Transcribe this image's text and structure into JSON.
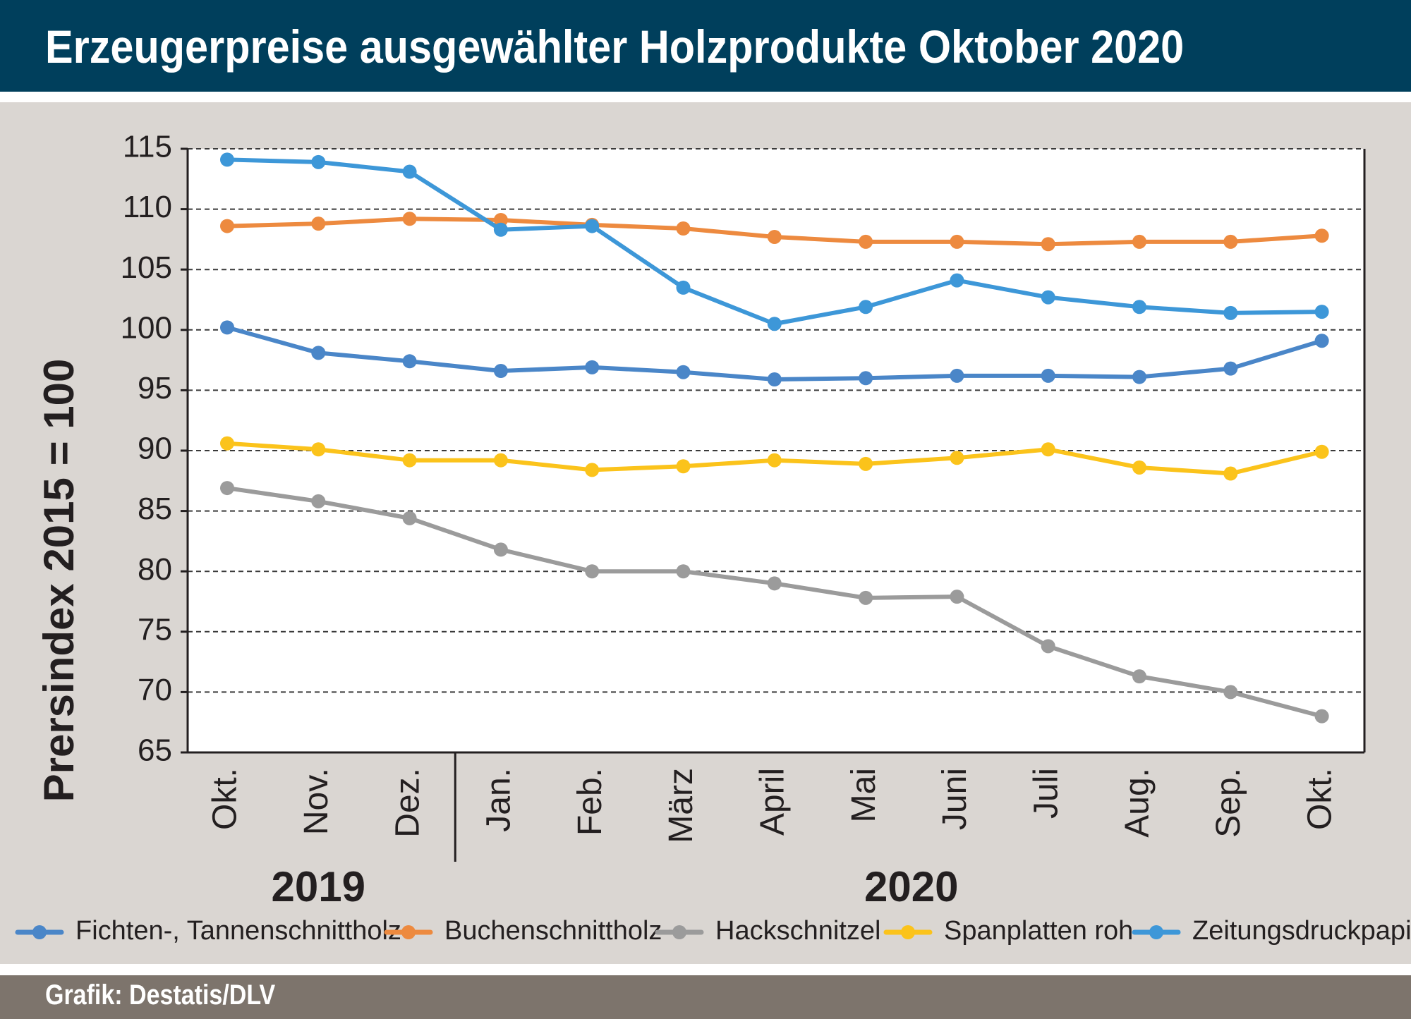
{
  "header": {
    "title": "Erzeugerpreise ausgewählter Holzprodukte Oktober 2020"
  },
  "footer": {
    "credit": "Grafik: Destatis/DLV"
  },
  "colors": {
    "header_bg": "#003f5c",
    "panel_bg": "#dad6d2",
    "footer_bg": "#7d746c",
    "plot_bg": "#ffffff"
  },
  "chart_data": {
    "type": "line",
    "title": "Erzeugerpreise ausgewählter Holzprodukte Oktober 2020",
    "ylabel": "Prersindex 2015 = 100",
    "xlabel": "",
    "ylim": [
      65,
      115
    ],
    "yticks": [
      65,
      70,
      75,
      80,
      85,
      90,
      95,
      100,
      105,
      110,
      115
    ],
    "grid": true,
    "legend_position": "bottom",
    "categories": [
      "Okt.",
      "Nov.",
      "Dez.",
      "Jan.",
      "Feb.",
      "März",
      "April",
      "Mai",
      "Juni",
      "Juli",
      "Aug.",
      "Sep.",
      "Okt."
    ],
    "year_groups": [
      {
        "label": "2019",
        "from": 0,
        "to": 2
      },
      {
        "label": "2020",
        "from": 3,
        "to": 12
      }
    ],
    "series": [
      {
        "name": "Fichten-, Tannenschnittholz",
        "color": "#4a86c8",
        "values": [
          100.2,
          98.1,
          97.4,
          96.6,
          96.9,
          96.5,
          95.9,
          96.0,
          96.2,
          96.2,
          96.1,
          96.8,
          99.1
        ]
      },
      {
        "name": "Buchenschnittholz",
        "color": "#ed8a3f",
        "values": [
          108.6,
          108.8,
          109.2,
          109.1,
          108.7,
          108.4,
          107.7,
          107.3,
          107.3,
          107.1,
          107.3,
          107.3,
          107.8
        ]
      },
      {
        "name": "Hackschnitzel",
        "color": "#9b9b9b",
        "values": [
          86.9,
          85.8,
          84.4,
          81.8,
          80.0,
          80.0,
          79.0,
          77.8,
          77.9,
          73.8,
          71.3,
          70.0,
          68.0
        ]
      },
      {
        "name": "Spanplatten roh",
        "color": "#fbc31b",
        "values": [
          90.6,
          90.1,
          89.2,
          89.2,
          88.4,
          88.7,
          89.2,
          88.9,
          89.4,
          90.1,
          88.6,
          88.1,
          89.9
        ]
      },
      {
        "name": "Zeitungsdruckpapier",
        "color": "#3d97d8",
        "values": [
          114.1,
          113.9,
          113.1,
          108.3,
          108.6,
          103.5,
          100.5,
          101.9,
          104.1,
          102.7,
          101.9,
          101.4,
          101.5
        ]
      }
    ]
  }
}
